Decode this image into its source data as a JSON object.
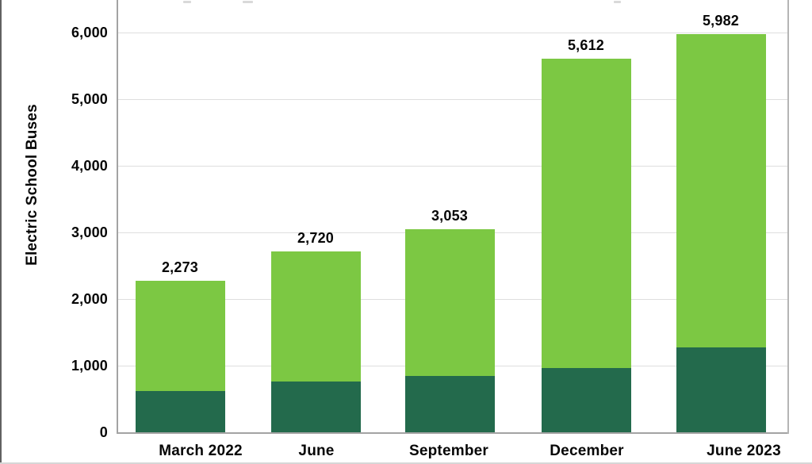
{
  "chart_data": {
    "type": "bar",
    "stacked": true,
    "title": "",
    "ylabel": "Electric School Buses",
    "xlabel": "",
    "categories": [
      "March 2022",
      "June",
      "September",
      "December",
      "June 2023"
    ],
    "series": [
      {
        "name": "dark-green-bottom-segment",
        "color": "#236a4c",
        "values": [
          620,
          760,
          845,
          960,
          1270
        ],
        "note_values_estimated_from_pixels": true
      },
      {
        "name": "light-green-top-segment",
        "color": "#7cc843",
        "values": [
          1653,
          1960,
          2208,
          4652,
          4712
        ],
        "note_values_estimated_from_pixels": true
      }
    ],
    "totals": [
      2273,
      2720,
      3053,
      5612,
      5982
    ],
    "total_labels": [
      "2,273",
      "2,720",
      "3,053",
      "5,612",
      "5,982"
    ],
    "y_axis": {
      "min": 0,
      "max": 6000,
      "tick_step": 1000,
      "tick_labels": [
        "0",
        "1,000",
        "2,000",
        "3,000",
        "4,000",
        "5,000",
        "6,000"
      ]
    },
    "grid": true,
    "legend_position": "cut off above visible area"
  },
  "colors": {
    "bar_light_green": "#7cc843",
    "bar_dark_green": "#236a4c",
    "gridline": "#dedede",
    "axis_line": "#a3a3a3",
    "plot_right_border": "#b5b5b5",
    "text": "#060606",
    "background": "#ffffff"
  }
}
